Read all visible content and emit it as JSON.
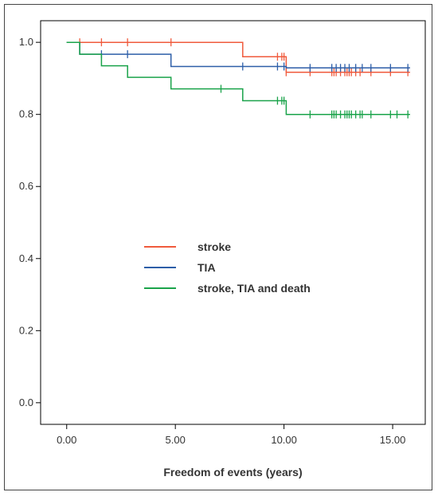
{
  "chart_data": {
    "type": "line",
    "step": true,
    "xlabel": "Freedom of events (years)",
    "ylabel": "",
    "xlim": [
      -1.2,
      16.5
    ],
    "ylim": [
      -0.06,
      1.06
    ],
    "xticks": [
      0,
      5,
      10,
      15
    ],
    "xtick_labels": [
      "0.00",
      "5.00",
      "10.00",
      "15.00"
    ],
    "yticks": [
      0,
      0.2,
      0.4,
      0.6,
      0.8,
      1.0
    ],
    "ytick_labels": [
      "0.0",
      "0.2",
      "0.4",
      "0.6",
      "0.8",
      "1.0"
    ],
    "grid": false,
    "legend_position": "center-left",
    "series": [
      {
        "name": "stroke",
        "color": "#f05a3c",
        "steps": [
          [
            0,
            1.0
          ],
          [
            8.1,
            1.0
          ],
          [
            8.1,
            0.96
          ],
          [
            10.1,
            0.96
          ],
          [
            10.1,
            0.917
          ],
          [
            15.8,
            0.917
          ]
        ],
        "censored_x": [
          0.6,
          1.6,
          2.8,
          4.8,
          9.7,
          9.9,
          10.0,
          10.1,
          11.2,
          12.2,
          12.3,
          12.4,
          12.6,
          12.8,
          12.9,
          13.0,
          13.1,
          13.3,
          13.5,
          14.0,
          14.9,
          15.7
        ]
      },
      {
        "name": "TIA",
        "color": "#2d5ea8",
        "steps": [
          [
            0,
            1.0
          ],
          [
            0.6,
            1.0
          ],
          [
            0.6,
            0.967
          ],
          [
            4.8,
            0.967
          ],
          [
            4.8,
            0.933
          ],
          [
            10.1,
            0.933
          ],
          [
            10.1,
            0.929
          ],
          [
            15.8,
            0.929
          ]
        ],
        "censored_x": [
          1.6,
          2.8,
          8.1,
          9.7,
          10.0,
          11.2,
          12.2,
          12.4,
          12.6,
          12.8,
          13.0,
          13.3,
          13.6,
          14.0,
          14.9,
          15.7
        ]
      },
      {
        "name": "stroke, TIA and death",
        "color": "#1aa34a",
        "steps": [
          [
            0,
            1.0
          ],
          [
            0.6,
            1.0
          ],
          [
            0.6,
            0.967
          ],
          [
            1.6,
            0.967
          ],
          [
            1.6,
            0.935
          ],
          [
            2.8,
            0.935
          ],
          [
            2.8,
            0.903
          ],
          [
            4.8,
            0.903
          ],
          [
            4.8,
            0.871
          ],
          [
            8.1,
            0.871
          ],
          [
            8.1,
            0.838
          ],
          [
            10.1,
            0.838
          ],
          [
            10.1,
            0.8
          ],
          [
            15.8,
            0.8
          ]
        ],
        "censored_x": [
          7.1,
          9.7,
          9.9,
          10.0,
          11.2,
          12.2,
          12.3,
          12.4,
          12.6,
          12.8,
          12.9,
          13.0,
          13.1,
          13.3,
          13.5,
          13.6,
          14.0,
          14.9,
          15.2,
          15.7
        ]
      }
    ]
  }
}
